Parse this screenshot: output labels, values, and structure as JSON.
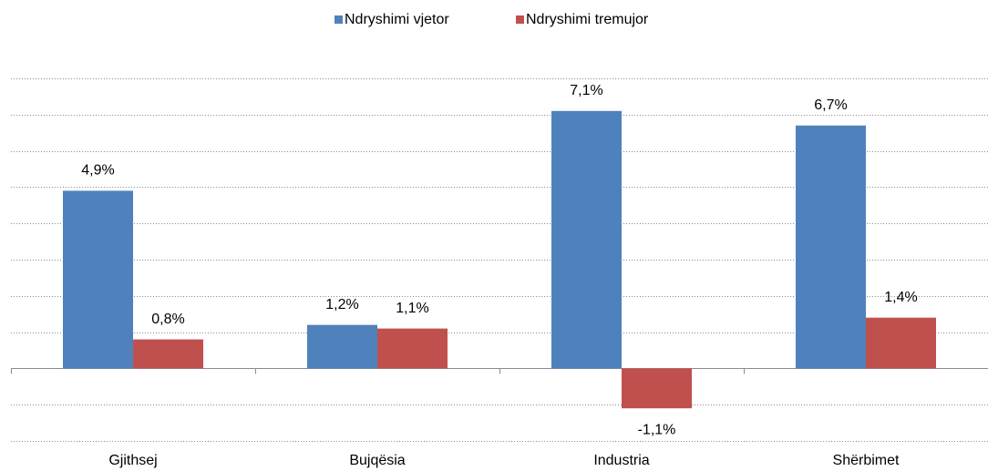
{
  "chart_data": {
    "type": "bar",
    "categories": [
      "Gjithsej",
      "Bujqësia",
      "Industria",
      "Shërbimet"
    ],
    "series": [
      {
        "name": "Ndryshimi vjetor",
        "color": "#4f81bd",
        "values": [
          4.9,
          1.2,
          7.1,
          6.7
        ],
        "value_labels": [
          "4,9%",
          "1,2%",
          "7,1%",
          "6,7%"
        ]
      },
      {
        "name": "Ndryshimi tremujor",
        "color": "#c0504d",
        "values": [
          0.8,
          1.1,
          -1.1,
          1.4
        ],
        "value_labels": [
          "0,8%",
          "1,1%",
          "-1,1%",
          "1,4%"
        ]
      }
    ],
    "ylim": [
      -2,
      8
    ],
    "yticks": [
      -2,
      -1,
      0,
      1,
      2,
      3,
      4,
      5,
      6,
      7,
      8
    ],
    "grid": true,
    "legend": "top"
  }
}
